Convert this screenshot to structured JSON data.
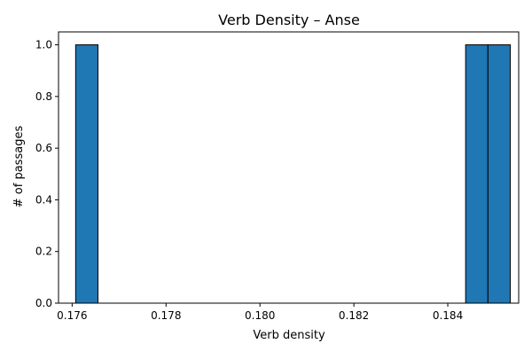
{
  "chart_data": {
    "type": "bar",
    "title": "Verb Density – Anse",
    "xlabel": "Verb density",
    "ylabel": "# of passages",
    "xlim": [
      0.17571,
      0.18551
    ],
    "ylim": [
      0.0,
      1.05
    ],
    "bin_width": 0.000475,
    "bins": [
      {
        "start": 0.176075,
        "end": 0.17655,
        "count": 1
      },
      {
        "start": 0.18438,
        "end": 0.184855,
        "count": 1
      },
      {
        "start": 0.184855,
        "end": 0.18533,
        "count": 1
      }
    ],
    "x_ticks": [
      {
        "value": 0.176,
        "label": "0.176"
      },
      {
        "value": 0.178,
        "label": "0.178"
      },
      {
        "value": 0.18,
        "label": "0.180"
      },
      {
        "value": 0.182,
        "label": "0.182"
      },
      {
        "value": 0.184,
        "label": "0.184"
      }
    ],
    "y_ticks": [
      {
        "value": 0.0,
        "label": "0.0"
      },
      {
        "value": 0.2,
        "label": "0.2"
      },
      {
        "value": 0.4,
        "label": "0.4"
      },
      {
        "value": 0.6,
        "label": "0.6"
      },
      {
        "value": 0.8,
        "label": "0.8"
      },
      {
        "value": 1.0,
        "label": "1.0"
      }
    ],
    "grid": false,
    "legend": "none",
    "bar_color": "#1f77b4",
    "edge_color": "#000000"
  }
}
